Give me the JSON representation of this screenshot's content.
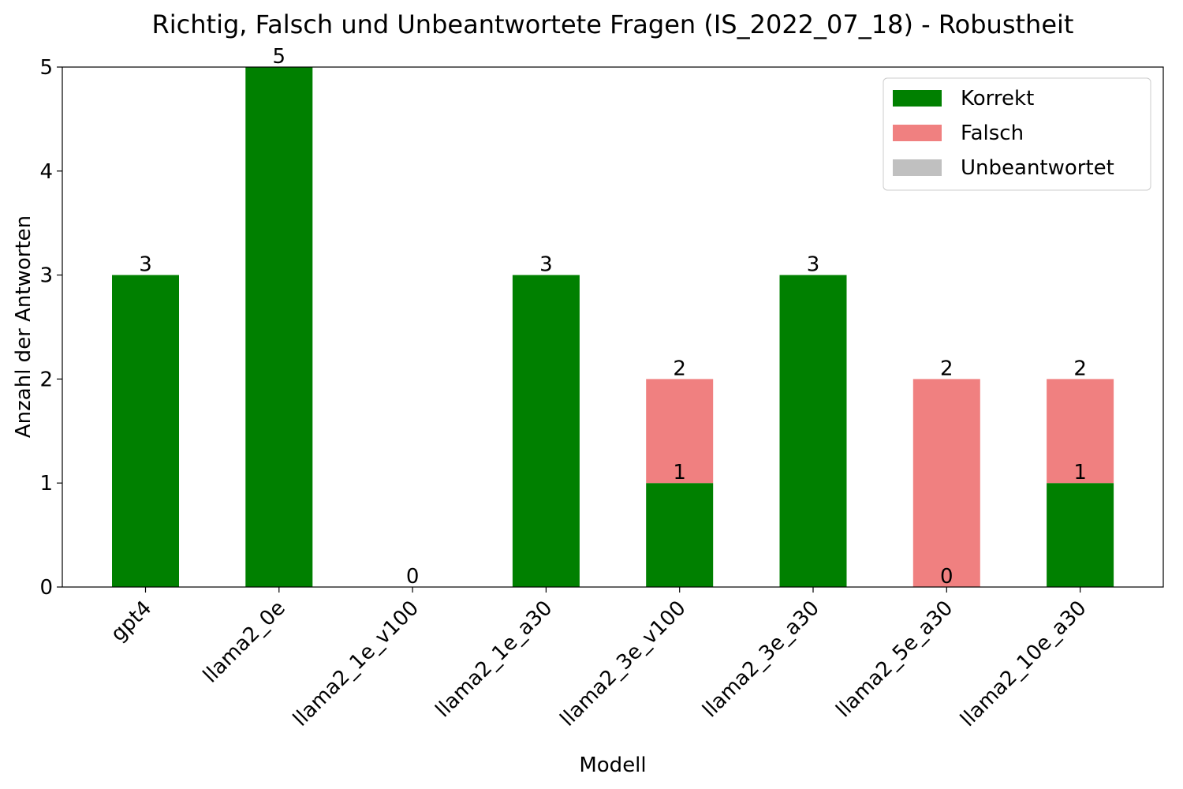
{
  "chart_data": {
    "type": "bar",
    "stacked": true,
    "title": "Richtig, Falsch und Unbeantwortete Fragen (IS_2022_07_18) - Robustheit",
    "xlabel": "Modell",
    "ylabel": "Anzahl der Antworten",
    "ylim": [
      0,
      5
    ],
    "yticks": [
      0,
      1,
      2,
      3,
      4,
      5
    ],
    "categories": [
      "gpt4",
      "llama2_0e",
      "llama2_1e_v100",
      "llama2_1e_a30",
      "llama2_3e_v100",
      "llama2_3e_a30",
      "llama2_5e_a30",
      "llama2_10e_a30"
    ],
    "series": [
      {
        "name": "Korrekt",
        "color": "#008000",
        "values": [
          3,
          5,
          0,
          3,
          1,
          3,
          0,
          1
        ]
      },
      {
        "name": "Falsch",
        "color": "#f08080",
        "values": [
          0,
          0,
          0,
          0,
          1,
          0,
          2,
          1
        ]
      },
      {
        "name": "Unbeantwortet",
        "color": "#c0c0c0",
        "values": [
          0,
          0,
          0,
          0,
          0,
          0,
          0,
          0
        ]
      }
    ],
    "data_labels": [
      {
        "category": 0,
        "text": "3",
        "value": 3
      },
      {
        "category": 1,
        "text": "5",
        "value": 5
      },
      {
        "category": 2,
        "text": "0",
        "value": 0
      },
      {
        "category": 3,
        "text": "3",
        "value": 3
      },
      {
        "category": 4,
        "text": "1",
        "value": 1
      },
      {
        "category": 4,
        "text": "2",
        "value": 2
      },
      {
        "category": 5,
        "text": "3",
        "value": 3
      },
      {
        "category": 6,
        "text": "0",
        "value": 0
      },
      {
        "category": 6,
        "text": "2",
        "value": 2
      },
      {
        "category": 7,
        "text": "1",
        "value": 1
      },
      {
        "category": 7,
        "text": "2",
        "value": 2
      }
    ],
    "legend_position": "top-right",
    "grid": false
  }
}
